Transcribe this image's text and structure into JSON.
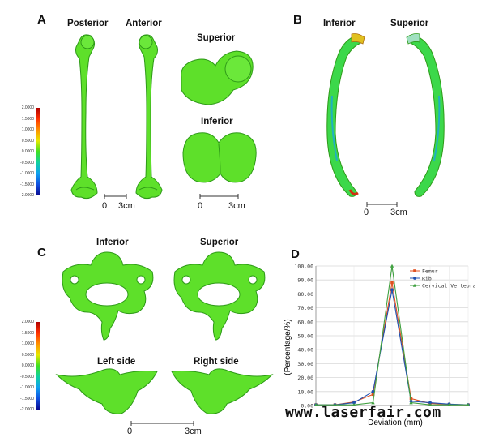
{
  "panels": {
    "A": {
      "letter": "A",
      "labels": [
        "Posterior",
        "Anterior",
        "Superior",
        "Inferior"
      ],
      "scale": {
        "zero": "0",
        "len": "3cm"
      }
    },
    "B": {
      "letter": "B",
      "labels": [
        "Inferior",
        "Superior"
      ],
      "scale": {
        "zero": "0",
        "len": "3cm"
      }
    },
    "C": {
      "letter": "C",
      "labels": [
        "Inferior",
        "Superior",
        "Left side",
        "Right side"
      ],
      "scale": {
        "zero": "0",
        "len": "3cm"
      }
    },
    "D": {
      "letter": "D"
    }
  },
  "colorbar": {
    "values": [
      "2.0000",
      "1.5000",
      "1.0000",
      "0.5000",
      "0.0000",
      "-0.5000",
      "-1.0000",
      "-1.5000",
      "-2.0000"
    ],
    "colors": [
      "#b00000",
      "#ff3000",
      "#ff9000",
      "#e8e800",
      "#40e020",
      "#10d0a0",
      "#10a0f0",
      "#1050e0",
      "#0a0a90"
    ]
  },
  "chart_data": {
    "type": "line",
    "xlabel": "Deviation (mm)",
    "ylabel": "(Percentage/%)",
    "ylim": [
      0,
      100
    ],
    "yticks": [
      "0.00",
      "10.00",
      "20.00",
      "30.00",
      "40.00",
      "50.00",
      "60.00",
      "70.00",
      "80.00",
      "90.00",
      "100.00"
    ],
    "x": [
      -1.0,
      -0.75,
      -0.5,
      -0.25,
      0,
      0.25,
      0.5,
      0.75,
      1.0
    ],
    "series": [
      {
        "name": "Femur",
        "color": "#e05020",
        "marker": "square",
        "values": [
          0.5,
          0.5,
          2.5,
          8,
          88,
          5,
          1.5,
          0.8,
          0.5
        ]
      },
      {
        "name": "Rib",
        "color": "#2050b0",
        "marker": "circle",
        "values": [
          0.5,
          0.5,
          2,
          10,
          83,
          3,
          2,
          1,
          0.5
        ]
      },
      {
        "name": "Cervical Vertebra",
        "color": "#40a040",
        "marker": "triangle",
        "values": [
          0.5,
          0.5,
          0.5,
          2,
          100,
          2,
          0.5,
          0.5,
          0.5
        ]
      }
    ]
  },
  "watermark": "www.laserfair.com"
}
